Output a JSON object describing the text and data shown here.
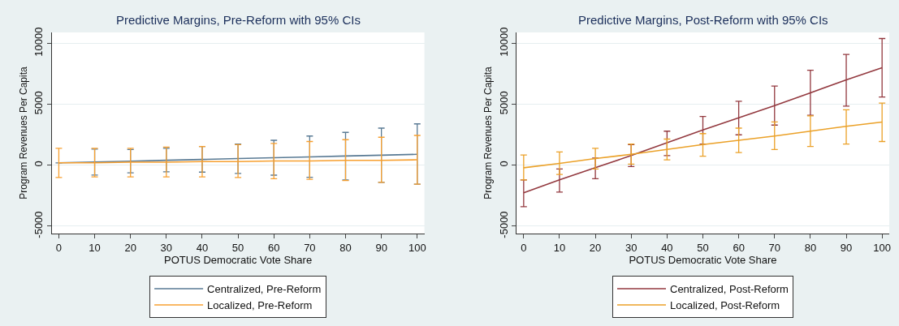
{
  "chart_data": [
    {
      "type": "line",
      "title": "Predictive Margins, Pre-Reform with 95% CIs",
      "xlabel": "POTUS Democratic Vote Share",
      "ylabel": "Program Revenues Per Capita",
      "x": [
        0,
        10,
        20,
        30,
        40,
        50,
        60,
        70,
        80,
        90,
        100
      ],
      "xlim": [
        -2,
        102
      ],
      "xticks": [
        0,
        10,
        20,
        30,
        40,
        50,
        60,
        70,
        80,
        90,
        100
      ],
      "ylim": [
        -5600,
        10900
      ],
      "yticks": [
        -5000,
        0,
        5000,
        10000
      ],
      "grid": "y",
      "legend": "bottom",
      "marker": "none",
      "line_style": "solid",
      "series": [
        {
          "name": "Centralized, Pre-Reform",
          "color": "#597a94",
          "values": [
            200,
            270,
            340,
            410,
            480,
            550,
            620,
            690,
            760,
            830,
            900
          ],
          "errors": [
            null,
            [
              -800,
              1330
            ],
            [
              -620,
              1300
            ],
            [
              -530,
              1400
            ],
            [
              -560,
              1550
            ],
            [
              -670,
              1750
            ],
            [
              -810,
              2050
            ],
            [
              -980,
              2400
            ],
            [
              -1200,
              2700
            ],
            [
              -1400,
              3050
            ],
            [
              -1550,
              3400
            ]
          ]
        },
        {
          "name": "Localized, Pre-Reform",
          "color": "#f7a030",
          "values": [
            200,
            200,
            250,
            250,
            300,
            300,
            350,
            350,
            400,
            400,
            450
          ],
          "errors": [
            [
              -1000,
              1400
            ],
            [
              -950,
              1400
            ],
            [
              -950,
              1400
            ],
            [
              -950,
              1500
            ],
            [
              -950,
              1550
            ],
            [
              -1000,
              1700
            ],
            [
              -1100,
              1800
            ],
            [
              -1150,
              1950
            ],
            [
              -1250,
              2100
            ],
            [
              -1400,
              2300
            ],
            [
              -1550,
              2450
            ]
          ]
        }
      ]
    },
    {
      "type": "line",
      "title": "Predictive Margins, Post-Reform with 95% CIs",
      "xlabel": "POTUS Democratic Vote Share",
      "ylabel": "Program Revenues Per Capita",
      "x": [
        0,
        10,
        20,
        30,
        40,
        50,
        60,
        70,
        80,
        90,
        100
      ],
      "xlim": [
        -2,
        102
      ],
      "xticks": [
        0,
        10,
        20,
        30,
        40,
        50,
        60,
        70,
        80,
        90,
        100
      ],
      "ylim": [
        -5600,
        10900
      ],
      "yticks": [
        -5000,
        0,
        5000,
        10000
      ],
      "grid": "y",
      "legend": "bottom",
      "marker": "none",
      "line_style": "solid",
      "series": [
        {
          "name": "Centralized, Post-Reform",
          "color": "#93393f",
          "values": [
            -2250,
            -1200,
            -200,
            800,
            1850,
            2900,
            3900,
            4900,
            5950,
            7000,
            8000
          ],
          "errors": [
            [
              -3400,
              -1200
            ],
            [
              -2200,
              -300
            ],
            [
              -1100,
              600
            ],
            [
              -100,
              1700
            ],
            [
              800,
              2800
            ],
            [
              1750,
              4000
            ],
            [
              2500,
              5250
            ],
            [
              3300,
              6500
            ],
            [
              4100,
              7800
            ],
            [
              4850,
              9100
            ],
            [
              5600,
              10400
            ]
          ]
        },
        {
          "name": "Localized, Post-Reform",
          "color": "#eba128",
          "values": [
            -200,
            150,
            550,
            900,
            1300,
            1700,
            2050,
            2400,
            2800,
            3200,
            3550
          ],
          "errors": [
            [
              -1200,
              850
            ],
            [
              -750,
              1100
            ],
            [
              -300,
              1400
            ],
            [
              100,
              1750
            ],
            [
              450,
              2150
            ],
            [
              750,
              2600
            ],
            [
              1050,
              3050
            ],
            [
              1300,
              3550
            ],
            [
              1550,
              4050
            ],
            [
              1750,
              4550
            ],
            [
              1950,
              5100
            ]
          ]
        }
      ]
    }
  ]
}
